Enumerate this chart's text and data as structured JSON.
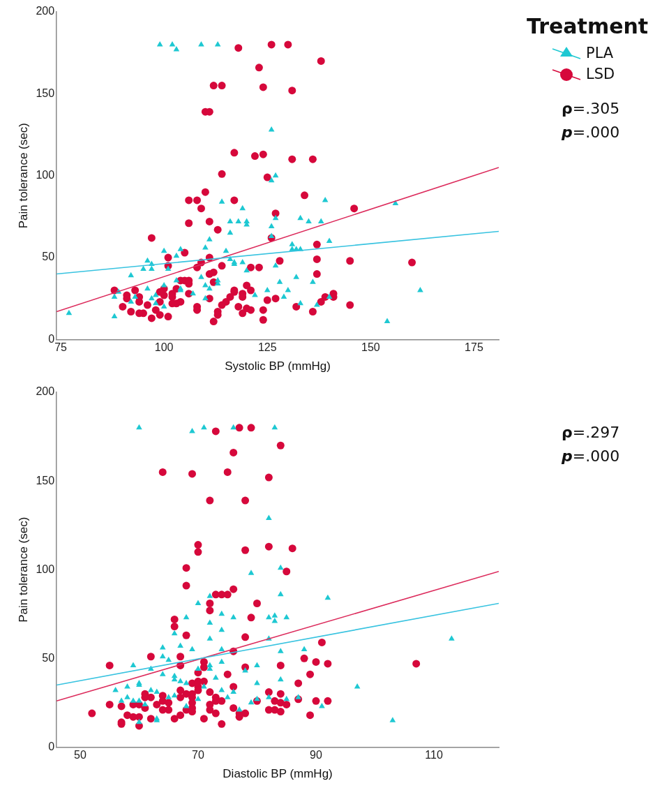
{
  "chart_data": [
    {
      "type": "scatter",
      "xlabel": "Systolic BP (mmHg)",
      "ylabel": "Pain tolerance (sec)",
      "xlim": [
        74,
        181
      ],
      "xticks": [
        75,
        100,
        125,
        150,
        175
      ],
      "ylim": [
        0,
        200
      ],
      "yticks": [
        0,
        50,
        100,
        150,
        200
      ],
      "grid": false,
      "legend": "right",
      "legend_title": "Treatment",
      "annotations": [
        "ρ=.305",
        "p=.000"
      ],
      "series": [
        {
          "name": "PLA",
          "color": "#1ec8d2",
          "marker": "triangle",
          "x": [
            99,
            102,
            103,
            109,
            113,
            126,
            127,
            126,
            114,
            119,
            139,
            77,
            88,
            88,
            89,
            92,
            92,
            93,
            95,
            96,
            97,
            97,
            96,
            97,
            98,
            98,
            100,
            100,
            100,
            101,
            103,
            104,
            103,
            104,
            104,
            107,
            109,
            110,
            111,
            110,
            111,
            110,
            113,
            113,
            115,
            116,
            116,
            118,
            116,
            117,
            117,
            119,
            120,
            120,
            120,
            122,
            125,
            126,
            126,
            127,
            127,
            128,
            129,
            130,
            131,
            131,
            132,
            133,
            133,
            135,
            132,
            133,
            136,
            137,
            138,
            140,
            156,
            162,
            154,
            140
          ],
          "values": [
            180,
            180,
            177,
            180,
            180,
            128,
            100,
            97,
            84,
            80,
            85,
            16,
            14,
            26,
            29,
            39,
            23,
            26,
            43,
            48,
            46,
            43,
            31,
            25,
            22,
            27,
            54,
            33,
            20,
            43,
            51,
            55,
            36,
            31,
            30,
            28,
            38,
            56,
            61,
            33,
            31,
            25,
            36,
            34,
            54,
            72,
            65,
            72,
            49,
            47,
            46,
            47,
            72,
            70,
            42,
            27,
            30,
            69,
            63,
            74,
            45,
            35,
            26,
            30,
            58,
            55,
            55,
            55,
            74,
            72,
            38,
            22,
            35,
            21,
            72,
            60,
            83,
            30,
            11,
            26
          ]
        },
        {
          "name": "LSD",
          "color": "#d6083b",
          "marker": "circle",
          "x": [
            118,
            126,
            130,
            138,
            123,
            112,
            114,
            124,
            131,
            110,
            111,
            117,
            122,
            124,
            131,
            136,
            114,
            125,
            110,
            106,
            108,
            117,
            134,
            109,
            106,
            111,
            113,
            127,
            97,
            126,
            105,
            101,
            111,
            101,
            109,
            108,
            137,
            128,
            114,
            121,
            123,
            137,
            137,
            111,
            112,
            112,
            104,
            105,
            106,
            106,
            103,
            120,
            121,
            117,
            117,
            119,
            119,
            116,
            115,
            114,
            113,
            113,
            112,
            118,
            119,
            120,
            121,
            124,
            124,
            125,
            127,
            132,
            136,
            138,
            139,
            111,
            108,
            108,
            106,
            104,
            103,
            102,
            102,
            102,
            100,
            100,
            99,
            99,
            98,
            97,
            99,
            101,
            96,
            95,
            94,
            94,
            94,
            93,
            92,
            91,
            91,
            90,
            88,
            146,
            145,
            160,
            145,
            141,
            141
          ],
          "values": [
            178,
            180,
            180,
            170,
            166,
            155,
            155,
            154,
            152,
            139,
            139,
            114,
            112,
            113,
            110,
            110,
            101,
            99,
            90,
            85,
            85,
            85,
            88,
            80,
            71,
            72,
            67,
            77,
            62,
            62,
            53,
            50,
            50,
            45,
            47,
            44,
            58,
            48,
            45,
            44,
            44,
            49,
            40,
            40,
            41,
            35,
            36,
            36,
            36,
            34,
            31,
            33,
            30,
            30,
            29,
            28,
            26,
            26,
            23,
            21,
            17,
            15,
            11,
            20,
            16,
            19,
            18,
            18,
            12,
            24,
            25,
            20,
            17,
            23,
            26,
            25,
            20,
            18,
            28,
            23,
            22,
            22,
            26,
            28,
            27,
            31,
            29,
            23,
            18,
            13,
            15,
            14,
            21,
            16,
            16,
            23,
            26,
            30,
            17,
            27,
            25,
            20,
            30,
            80,
            48,
            47,
            21,
            28,
            26
          ]
        },
        {
          "type": "line",
          "color": "#38c3e0",
          "x": [
            74,
            181
          ],
          "values": [
            40,
            66
          ]
        },
        {
          "type": "line",
          "color": "#dc2b5c",
          "x": [
            74,
            181
          ],
          "values": [
            17,
            105
          ]
        }
      ]
    },
    {
      "type": "scatter",
      "xlabel": "Diastolic BP (mmHg)",
      "ylabel": "Pain tolerance (sec)",
      "xlim": [
        46,
        121
      ],
      "xticks": [
        50,
        70,
        90,
        110
      ],
      "ylim": [
        0,
        200
      ],
      "yticks": [
        0,
        50,
        100,
        150,
        200
      ],
      "grid": false,
      "annotations": [
        "ρ=.297",
        "p=.000"
      ],
      "series": [
        {
          "color": "#1ec8d2",
          "marker": "triangle",
          "x": [
            60,
            69,
            71,
            76,
            83,
            82,
            84,
            79,
            72,
            84,
            92,
            70,
            68,
            72,
            74,
            76,
            82,
            83,
            83,
            85,
            74,
            72,
            66,
            82,
            64,
            67,
            69,
            74,
            84,
            88,
            64,
            65,
            59,
            62,
            72,
            72,
            74,
            70,
            78,
            80,
            64,
            66,
            66,
            67,
            68,
            73,
            80,
            84,
            56,
            58,
            60,
            60,
            62,
            63,
            58,
            57,
            59,
            60,
            61,
            65,
            66,
            71,
            70,
            74,
            75,
            76,
            79,
            80,
            82,
            85,
            87,
            91,
            68,
            77,
            63,
            63,
            60,
            113,
            97,
            103
          ],
          "values": [
            180,
            178,
            180,
            180,
            180,
            129,
            101,
            98,
            85,
            86,
            84,
            81,
            73,
            70,
            75,
            73,
            73,
            74,
            71,
            73,
            66,
            61,
            64,
            61,
            56,
            57,
            55,
            55,
            54,
            55,
            51,
            49,
            46,
            44,
            46,
            44,
            48,
            44,
            43,
            46,
            41,
            40,
            38,
            37,
            36,
            39,
            36,
            38,
            32,
            34,
            36,
            35,
            32,
            31,
            28,
            26,
            26,
            26,
            24,
            28,
            29,
            34,
            27,
            32,
            28,
            31,
            25,
            27,
            28,
            27,
            28,
            23,
            23,
            21,
            16,
            15,
            14,
            61,
            34,
            15
          ]
        },
        {
          "color": "#d6083b",
          "marker": "circle",
          "x": [
            73,
            77,
            79,
            84,
            76,
            64,
            69,
            75,
            82,
            72,
            78,
            70,
            70,
            78,
            82,
            86,
            68,
            85,
            68,
            76,
            73,
            74,
            75,
            72,
            72,
            80,
            79,
            66,
            66,
            68,
            78,
            76,
            91,
            62,
            67,
            67,
            55,
            71,
            71,
            78,
            84,
            88,
            90,
            92,
            89,
            70,
            75,
            69,
            70,
            71,
            70,
            70,
            67,
            76,
            87,
            72,
            69,
            68,
            67,
            69,
            61,
            61,
            62,
            64,
            64,
            65,
            73,
            73,
            74,
            80,
            82,
            83,
            84,
            84,
            85,
            87,
            90,
            92,
            69,
            69,
            69,
            68,
            67,
            66,
            65,
            64,
            63,
            62,
            61,
            60,
            59,
            60,
            59,
            60,
            58,
            57,
            57,
            57,
            55,
            52,
            71,
            73,
            74,
            72,
            72,
            76,
            77,
            77,
            78,
            82,
            83,
            84,
            89,
            107
          ],
          "values": [
            178,
            180,
            180,
            170,
            166,
            155,
            154,
            155,
            152,
            139,
            139,
            114,
            110,
            111,
            113,
            112,
            101,
            99,
            91,
            89,
            86,
            86,
            86,
            81,
            77,
            81,
            73,
            72,
            68,
            63,
            62,
            54,
            59,
            51,
            51,
            46,
            46,
            48,
            45,
            45,
            46,
            50,
            48,
            47,
            41,
            42,
            41,
            36,
            37,
            37,
            34,
            32,
            32,
            34,
            36,
            31,
            30,
            30,
            28,
            28,
            30,
            28,
            28,
            29,
            26,
            25,
            28,
            26,
            26,
            26,
            31,
            26,
            30,
            25,
            24,
            27,
            26,
            26,
            25,
            22,
            20,
            21,
            18,
            16,
            21,
            21,
            24,
            16,
            22,
            24,
            24,
            17,
            17,
            12,
            18,
            23,
            14,
            13,
            24,
            19,
            16,
            19,
            13,
            24,
            21,
            22,
            19,
            17,
            19,
            21,
            21,
            20,
            18,
            47
          ]
        },
        {
          "type": "line",
          "color": "#38c3e0",
          "x": [
            46,
            121
          ],
          "values": [
            35,
            81
          ]
        },
        {
          "type": "line",
          "color": "#dc2b5c",
          "x": [
            46,
            121
          ],
          "values": [
            26,
            99
          ]
        }
      ]
    }
  ]
}
